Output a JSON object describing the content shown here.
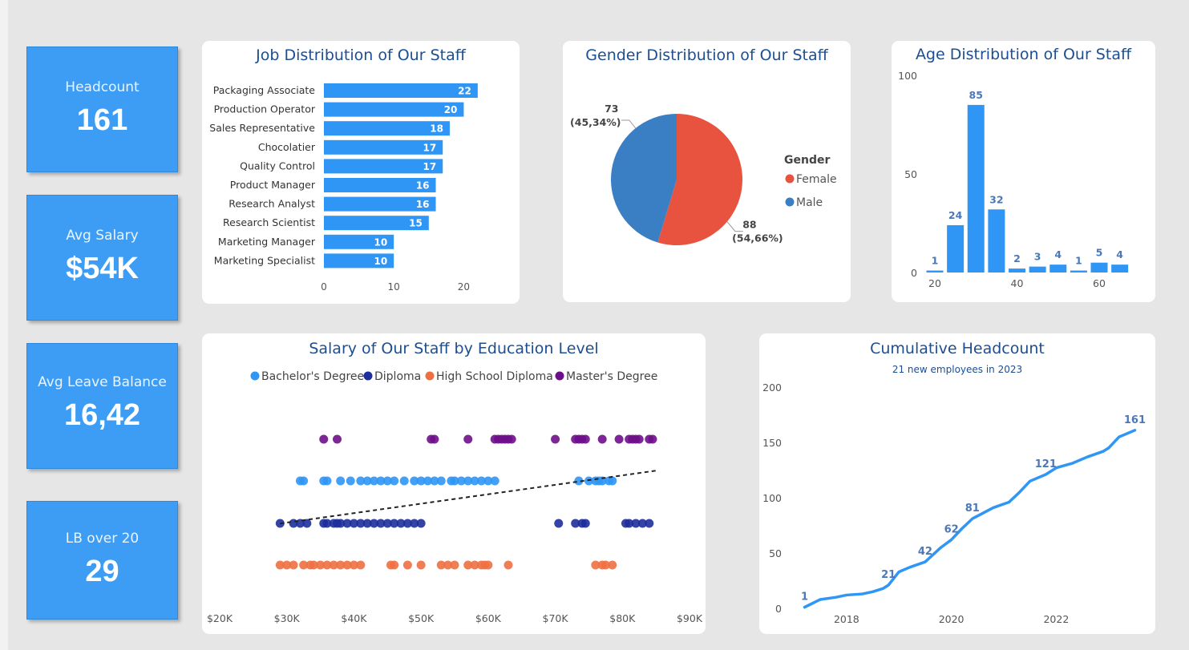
{
  "kpis": [
    {
      "label": "Headcount",
      "value": "161"
    },
    {
      "label": "Avg Salary",
      "value": "$54K"
    },
    {
      "label": "Avg Leave Balance",
      "value": "16,42"
    },
    {
      "label": "LB over 20",
      "value": "29"
    }
  ],
  "colors": {
    "bar": "#2f96f5",
    "female": "#e8533f",
    "male": "#3a7fc4",
    "bachelor": "#2f96f5",
    "diploma": "#1d2f9c",
    "highschool": "#ee7042",
    "master": "#6e0f8a",
    "title": "#1c4e91"
  },
  "job": {
    "title": "Job Distribution of Our Staff",
    "chart_data": {
      "type": "bar",
      "categories": [
        "Packaging Associate",
        "Production Operator",
        "Sales Representative",
        "Chocolatier",
        "Quality Control",
        "Product Manager",
        "Research Analyst",
        "Research Scientist",
        "Marketing Manager",
        "Marketing Specialist"
      ],
      "values": [
        22,
        20,
        18,
        17,
        17,
        16,
        16,
        15,
        10,
        10
      ],
      "xticks": [
        "0",
        "10",
        "20"
      ],
      "xlim": [
        0,
        25
      ]
    }
  },
  "gender": {
    "title": "Gender Distribution of Our Staff",
    "legend_title": "Gender",
    "chart_data": {
      "type": "pie",
      "slices": [
        {
          "name": "Female",
          "value": 88,
          "label": "88",
          "pct": "(54,66%)"
        },
        {
          "name": "Male",
          "value": 73,
          "label": "73",
          "pct": "(45,34%)"
        }
      ]
    }
  },
  "age": {
    "title": "Age Distribution of Our Staff",
    "chart_data": {
      "type": "bar",
      "x": [
        20,
        25,
        30,
        35,
        40,
        45,
        50,
        55,
        60,
        65
      ],
      "values": [
        1,
        24,
        85,
        32,
        2,
        3,
        4,
        1,
        5,
        4
      ],
      "yticks": [
        "0",
        "50",
        "100"
      ],
      "xticks": [
        "20",
        "40",
        "60"
      ],
      "ylim": [
        0,
        100
      ]
    }
  },
  "salary": {
    "title": "Salary of Our Staff by Education Level",
    "legend": [
      "Bachelor's Degree",
      "Diploma",
      "High School Diploma",
      "Master's Degree"
    ],
    "chart_data": {
      "type": "scatter",
      "xticks": [
        "$20K",
        "$30K",
        "$40K",
        "$50K",
        "$60K",
        "$70K",
        "$80K",
        "$90K"
      ],
      "xlim": [
        20,
        90
      ],
      "series": [
        {
          "name": "Master's Degree",
          "values": [
            35.5,
            37.5,
            51.5,
            52,
            57,
            61,
            61.5,
            62,
            62.5,
            63,
            63.5,
            70,
            73,
            73.5,
            74,
            74.5,
            77,
            79.5,
            81,
            81.5,
            82,
            82.5,
            84,
            84.5
          ]
        },
        {
          "name": "Bachelor's Degree",
          "values": [
            32,
            32.5,
            35.5,
            36,
            38,
            39.5,
            41,
            42,
            43,
            44,
            45,
            46,
            47.5,
            49,
            50,
            51,
            52,
            53,
            54.5,
            55,
            56,
            57,
            58,
            59,
            60,
            61,
            73.5,
            75,
            76,
            76.5,
            77,
            78,
            78.5
          ]
        },
        {
          "name": "Diploma",
          "values": [
            29,
            31,
            32,
            33,
            35.5,
            36,
            37,
            37.5,
            38,
            39,
            40,
            41,
            42,
            43,
            44,
            45,
            46,
            47,
            48,
            49,
            50,
            70.5,
            73,
            74,
            74.5,
            80.5,
            81,
            82,
            83,
            84
          ]
        },
        {
          "name": "High School Diploma",
          "values": [
            29,
            30,
            31,
            32.5,
            33.5,
            34,
            35,
            36,
            37,
            38,
            39,
            40,
            41,
            45.5,
            46,
            48,
            50,
            53,
            54,
            55,
            57,
            58,
            59,
            59.5,
            60,
            63,
            76,
            77,
            77.5,
            78.5
          ]
        }
      ],
      "trendline": {
        "x": [
          29,
          85
        ],
        "y": [
          0.33,
          0.75
        ]
      }
    }
  },
  "cumulative": {
    "title": "Cumulative Headcount",
    "subtitle": "21 new employees in 2023",
    "chart_data": {
      "type": "line",
      "x": [
        2017.2,
        2017.5,
        2017.8,
        2018.0,
        2018.3,
        2018.5,
        2018.7,
        2018.8,
        2019.0,
        2019.2,
        2019.5,
        2019.8,
        2020.0,
        2020.2,
        2020.4,
        2020.6,
        2020.8,
        2021.1,
        2021.3,
        2021.5,
        2021.8,
        2022.0,
        2022.3,
        2022.6,
        2022.9,
        2023.0,
        2023.2,
        2023.5
      ],
      "y": [
        1,
        8,
        10,
        12,
        13,
        15,
        18,
        21,
        33,
        37,
        42,
        55,
        62,
        72,
        81,
        86,
        91,
        96,
        105,
        115,
        121,
        127,
        131,
        137,
        142,
        145,
        155,
        161
      ],
      "labels": [
        {
          "i": 0,
          "text": "1"
        },
        {
          "i": 7,
          "text": "21"
        },
        {
          "i": 10,
          "text": "42"
        },
        {
          "i": 12,
          "text": "62"
        },
        {
          "i": 14,
          "text": "81"
        },
        {
          "i": 20,
          "text": "121"
        },
        {
          "i": 27,
          "text": "161"
        }
      ],
      "yticks": [
        "0",
        "50",
        "100",
        "150",
        "200"
      ],
      "xticks": [
        "2018",
        "2020",
        "2022"
      ],
      "ylim": [
        0,
        200
      ],
      "xlim": [
        2017.1,
        2023.6
      ]
    }
  }
}
